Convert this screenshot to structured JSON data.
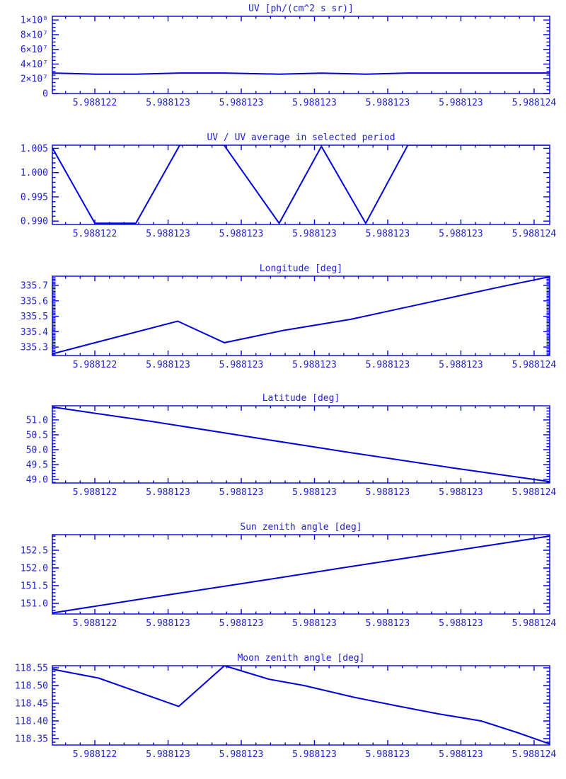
{
  "colors": {
    "plot_blue": "#0000dc",
    "text_blue": "#2222d2",
    "background": "#ffffff"
  },
  "x_axis": {
    "tick_labels": [
      "5.988122",
      "5.988123",
      "5.988123",
      "5.988123",
      "5.988123",
      "5.988123",
      "5.988124"
    ],
    "first_major_t": 0.0854,
    "major_step_t": 0.1472,
    "minor_per_major": 5
  },
  "chart_data": [
    {
      "type": "line",
      "title": "UV [ph/(cm^2 s sr)]",
      "ylabel": "",
      "y_range": [
        0,
        105000000
      ],
      "y_minor_step": 5000000,
      "grid": false,
      "y_ticks": [
        {
          "value": 0,
          "label": "0"
        },
        {
          "value": 20000000,
          "label": "2×10⁷"
        },
        {
          "value": 40000000,
          "label": "4×10⁷"
        },
        {
          "value": 60000000,
          "label": "6×10⁷"
        },
        {
          "value": 80000000,
          "label": "8×10⁷"
        },
        {
          "value": 100000000,
          "label": "1×10⁸"
        }
      ],
      "series": [
        {
          "name": "uv",
          "points": [
            [
              0.0,
              27800000
            ],
            [
              0.0855,
              26300000
            ],
            [
              0.168,
              26300000
            ],
            [
              0.2564,
              27800000
            ],
            [
              0.345,
              27800000
            ],
            [
              0.456,
              26300000
            ],
            [
              0.541,
              27700000
            ],
            [
              0.63,
              26300000
            ],
            [
              0.715,
              27800000
            ],
            [
              1.0,
              27800000
            ]
          ]
        }
      ]
    },
    {
      "type": "line",
      "title": "UV / UV average in selected period",
      "ylabel": "",
      "y_range": [
        0.9893,
        1.00565
      ],
      "y_minor_step": 0.001,
      "grid": false,
      "y_ticks": [
        {
          "value": 0.99,
          "label": "0.990"
        },
        {
          "value": 0.995,
          "label": "0.995"
        },
        {
          "value": 1.0,
          "label": "1.000"
        },
        {
          "value": 1.005,
          "label": "1.005"
        }
      ],
      "series": [
        {
          "name": "uv-ratio",
          "points": [
            [
              0.0,
              1.0051
            ],
            [
              0.0855,
              0.98955
            ],
            [
              0.168,
              0.98955
            ],
            [
              0.2564,
              1.0057
            ],
            [
              0.345,
              1.0057
            ],
            [
              0.456,
              0.98955
            ],
            [
              0.541,
              1.0054
            ],
            [
              0.63,
              0.98955
            ],
            [
              0.715,
              1.0057
            ],
            [
              1.0,
              1.0057
            ]
          ]
        }
      ]
    },
    {
      "type": "line",
      "title": "Longitude [deg]",
      "ylabel": "",
      "y_range": [
        335.245,
        335.76
      ],
      "y_minor_step": 0.01,
      "grid": false,
      "y_ticks": [
        {
          "value": 335.3,
          "label": "335.3"
        },
        {
          "value": 335.4,
          "label": "335.4"
        },
        {
          "value": 335.5,
          "label": "335.5"
        },
        {
          "value": 335.6,
          "label": "335.6"
        },
        {
          "value": 335.7,
          "label": "335.7"
        }
      ],
      "series": [
        {
          "name": "longitude",
          "points": [
            [
              0.0,
              335.256
            ],
            [
              0.252,
              335.468
            ],
            [
              0.346,
              335.328
            ],
            [
              0.464,
              335.408
            ],
            [
              0.6,
              335.48
            ],
            [
              0.692,
              335.545
            ],
            [
              0.8,
              335.62
            ],
            [
              0.9,
              335.69
            ],
            [
              1.0,
              335.757
            ]
          ]
        }
      ]
    },
    {
      "type": "line",
      "title": "Latitude [deg]",
      "ylabel": "",
      "y_range": [
        48.88,
        51.475
      ],
      "y_minor_step": 0.1,
      "grid": false,
      "y_ticks": [
        {
          "value": 49.0,
          "label": "49.0"
        },
        {
          "value": 49.5,
          "label": "49.5"
        },
        {
          "value": 50.0,
          "label": "50.0"
        },
        {
          "value": 50.5,
          "label": "50.5"
        },
        {
          "value": 51.0,
          "label": "51.0"
        }
      ],
      "series": [
        {
          "name": "latitude",
          "points": [
            [
              0.0,
              51.432
            ],
            [
              0.2,
              50.95
            ],
            [
              0.4,
              50.42
            ],
            [
              0.6,
              49.9
            ],
            [
              0.8,
              49.4
            ],
            [
              1.0,
              48.925
            ]
          ]
        }
      ]
    },
    {
      "type": "line",
      "title": "Sun zenith angle [deg]",
      "ylabel": "",
      "y_range": [
        150.7,
        152.94
      ],
      "y_minor_step": 0.1,
      "grid": false,
      "y_ticks": [
        {
          "value": 151.0,
          "label": "151.0"
        },
        {
          "value": 151.5,
          "label": "151.5"
        },
        {
          "value": 152.0,
          "label": "152.0"
        },
        {
          "value": 152.5,
          "label": "152.5"
        }
      ],
      "series": [
        {
          "name": "sun-zenith",
          "points": [
            [
              0.0,
              150.73
            ],
            [
              0.2,
              151.17
            ],
            [
              0.4,
              151.6
            ],
            [
              0.6,
              152.04
            ],
            [
              0.8,
              152.47
            ],
            [
              1.0,
              152.9
            ]
          ]
        }
      ]
    },
    {
      "type": "line",
      "title": "Moon zenith angle [deg]",
      "ylabel": "",
      "y_range": [
        118.332,
        118.556
      ],
      "y_minor_step": 0.01,
      "grid": false,
      "y_ticks": [
        {
          "value": 118.35,
          "label": "118.35"
        },
        {
          "value": 118.4,
          "label": "118.40"
        },
        {
          "value": 118.45,
          "label": "118.45"
        },
        {
          "value": 118.5,
          "label": "118.50"
        },
        {
          "value": 118.55,
          "label": "118.55"
        }
      ],
      "series": [
        {
          "name": "moon-zenith",
          "points": [
            [
              0.0,
              118.546
            ],
            [
              0.093,
              118.521
            ],
            [
              0.254,
              118.441
            ],
            [
              0.346,
              118.556
            ],
            [
              0.435,
              118.518
            ],
            [
              0.506,
              118.5
            ],
            [
              0.606,
              118.467
            ],
            [
              0.691,
              118.443
            ],
            [
              0.776,
              118.42
            ],
            [
              0.862,
              118.4
            ],
            [
              0.933,
              118.368
            ],
            [
              1.0,
              118.335
            ]
          ]
        }
      ]
    }
  ]
}
